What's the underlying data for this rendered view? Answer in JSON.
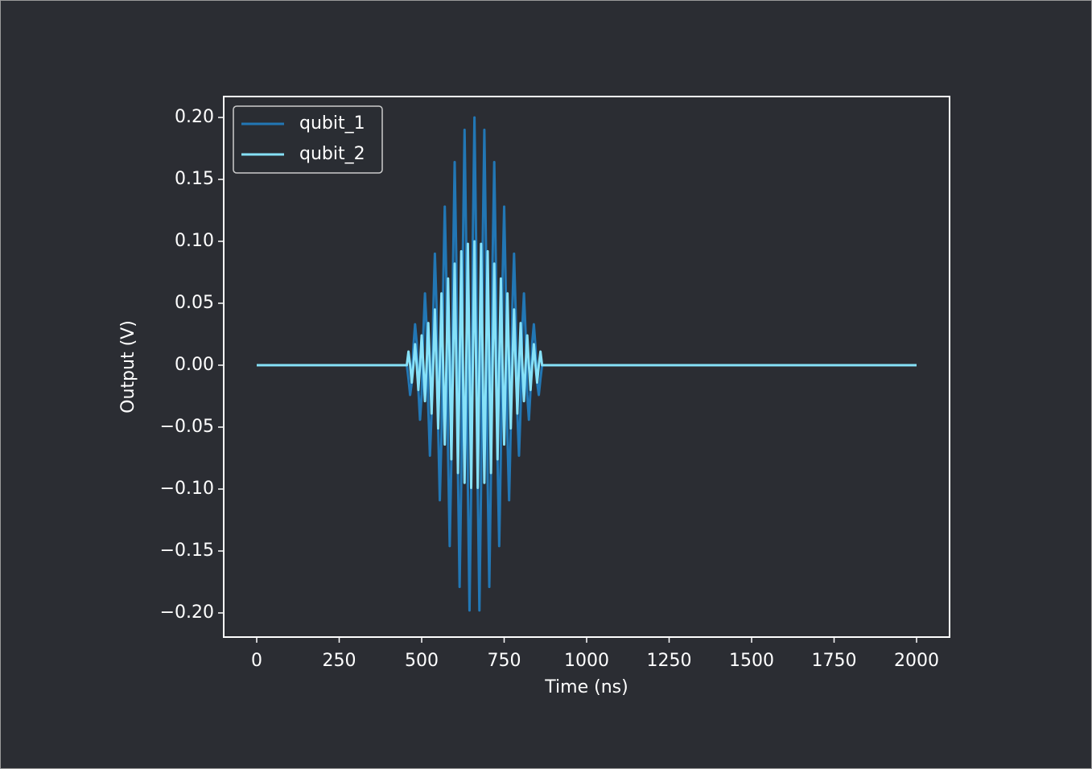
{
  "chart_data": {
    "type": "line",
    "xlabel": "Time (ns)",
    "ylabel": "Output (V)",
    "xlim": [
      -100,
      2100
    ],
    "ylim": [
      -0.2195,
      0.2169
    ],
    "xticks": [
      0,
      250,
      500,
      750,
      1000,
      1250,
      1500,
      1750,
      2000
    ],
    "yticks": [
      {
        "value": 0.2,
        "label": "0.20"
      },
      {
        "value": 0.15,
        "label": "0.15"
      },
      {
        "value": 0.1,
        "label": "0.10"
      },
      {
        "value": 0.05,
        "label": "0.05"
      },
      {
        "value": 0,
        "label": "0.00"
      },
      {
        "value": -0.05,
        "label": "−0.05"
      },
      {
        "value": -0.1,
        "label": "−0.10"
      },
      {
        "value": -0.15,
        "label": "−0.15"
      },
      {
        "value": -0.2,
        "label": "−0.20"
      }
    ],
    "legend": "upper left",
    "x": [
      0,
      455,
      460,
      465,
      470,
      475,
      480,
      485,
      490,
      495,
      500,
      505,
      510,
      515,
      520,
      525,
      530,
      535,
      540,
      545,
      550,
      555,
      560,
      565,
      570,
      575,
      580,
      585,
      590,
      595,
      600,
      605,
      610,
      615,
      620,
      625,
      630,
      635,
      640,
      645,
      650,
      655,
      660,
      665,
      670,
      675,
      680,
      685,
      690,
      695,
      700,
      705,
      710,
      715,
      720,
      725,
      730,
      735,
      740,
      745,
      750,
      755,
      760,
      765,
      770,
      775,
      780,
      785,
      790,
      795,
      800,
      805,
      810,
      815,
      820,
      825,
      830,
      835,
      840,
      845,
      850,
      855,
      860,
      865,
      2000
    ],
    "series": [
      {
        "name": "qubit_1",
        "color": "#2277b5",
        "values": [
          0,
          0,
          -0.011,
          -0.024,
          -0.014,
          0.015,
          0.033,
          0.018,
          -0.02,
          -0.044,
          -0.024,
          0.026,
          0.058,
          0.031,
          -0.034,
          -0.073,
          -0.039,
          0.042,
          0.09,
          0.048,
          -0.051,
          -0.109,
          -0.058,
          0.061,
          0.128,
          0.067,
          -0.07,
          -0.146,
          -0.076,
          0.079,
          0.164,
          0.085,
          -0.087,
          -0.179,
          -0.092,
          0.093,
          0.19,
          0.097,
          -0.098,
          -0.198,
          -0.099,
          0.1,
          0.2,
          0.1,
          -0.099,
          -0.198,
          -0.098,
          0.097,
          0.19,
          0.093,
          -0.092,
          -0.179,
          -0.087,
          0.085,
          0.164,
          0.079,
          -0.076,
          -0.146,
          -0.07,
          0.067,
          0.128,
          0.061,
          -0.058,
          -0.109,
          -0.051,
          0.048,
          0.09,
          0.042,
          -0.039,
          -0.073,
          -0.034,
          0.031,
          0.058,
          0.026,
          -0.024,
          -0.044,
          -0.02,
          0.018,
          0.033,
          0.015,
          -0.014,
          -0.024,
          -0.011,
          0,
          0
        ]
      },
      {
        "name": "qubit_2",
        "color": "#86e1f8",
        "values": [
          0,
          0,
          0.011,
          0,
          -0.014,
          0,
          0.017,
          0,
          -0.02,
          0,
          0.024,
          0,
          -0.029,
          0,
          0.034,
          0,
          -0.039,
          0,
          0.045,
          0,
          -0.051,
          0,
          0.058,
          0,
          -0.064,
          0,
          0.07,
          0,
          -0.076,
          0,
          0.082,
          0,
          -0.087,
          0,
          0.092,
          0,
          -0.095,
          0,
          0.098,
          0,
          -0.099,
          0,
          0.1,
          0,
          -0.099,
          0,
          0.098,
          0,
          -0.095,
          0,
          0.092,
          0,
          -0.087,
          0,
          0.082,
          0,
          -0.076,
          0,
          0.07,
          0,
          -0.064,
          0,
          0.058,
          0,
          -0.051,
          0,
          0.045,
          0,
          -0.039,
          0,
          0.034,
          0,
          -0.029,
          0,
          0.024,
          0,
          -0.02,
          0,
          0.017,
          0,
          -0.014,
          0,
          0.011,
          0,
          0
        ]
      }
    ]
  }
}
